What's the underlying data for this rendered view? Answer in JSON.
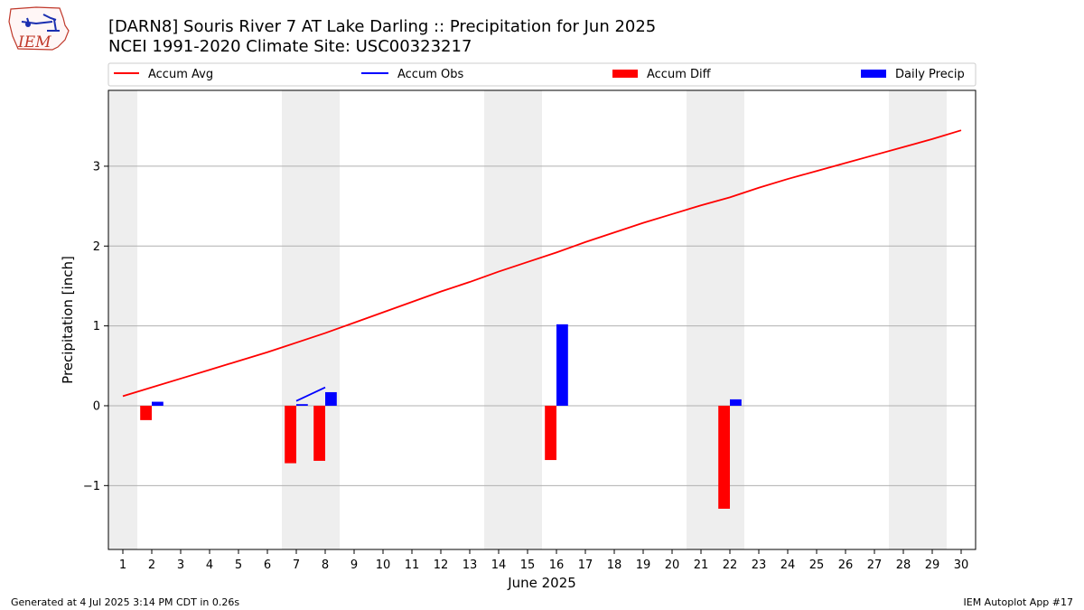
{
  "logo": {
    "text": "IEM"
  },
  "title": {
    "line1": "[DARN8] Souris River 7 AT Lake Darling :: Precipitation for Jun 2025",
    "line2": "NCEI 1991-2020 Climate Site: USC00323217"
  },
  "footer": {
    "left": "Generated at 4 Jul 2025 3:14 PM CDT in 0.26s",
    "right": "IEM Autoplot App #17"
  },
  "colors": {
    "accum_avg": "#ff0000",
    "accum_obs": "#0000ff",
    "accum_diff": "#ff0000",
    "daily_precip": "#0000ff",
    "weekend_band": "#eeeeee",
    "grid": "#b0b0b0"
  },
  "chart_data": {
    "type": "bar",
    "title": "[DARN8] Souris River 7 AT Lake Darling :: Precipitation for Jun 2025",
    "subtitle": "NCEI 1991-2020 Climate Site: USC00323217",
    "xlabel": "June 2025",
    "ylabel": "Precipitation [inch]",
    "xlim": [
      0.5,
      30.5
    ],
    "ylim": [
      -1.8,
      3.95
    ],
    "x_ticks": [
      1,
      2,
      3,
      4,
      5,
      6,
      7,
      8,
      9,
      10,
      11,
      12,
      13,
      14,
      15,
      16,
      17,
      18,
      19,
      20,
      21,
      22,
      23,
      24,
      25,
      26,
      27,
      28,
      29,
      30
    ],
    "y_ticks": [
      -1,
      0,
      1,
      2,
      3
    ],
    "y_tick_labels": [
      "−1",
      "0",
      "1",
      "2",
      "3"
    ],
    "grid": "horizontal",
    "legend_position": "top",
    "legend": [
      "Accum Avg",
      "Accum Obs",
      "Accum Diff",
      "Daily Precip"
    ],
    "weekend_bands": [
      [
        0.5,
        1.5
      ],
      [
        6.5,
        8.5
      ],
      [
        13.5,
        15.5
      ],
      [
        20.5,
        22.5
      ],
      [
        27.5,
        29.5
      ]
    ],
    "accum_avg": {
      "x": [
        1,
        2,
        3,
        4,
        5,
        6,
        7,
        8,
        9,
        10,
        11,
        12,
        13,
        14,
        15,
        16,
        17,
        18,
        19,
        20,
        21,
        22,
        23,
        24,
        25,
        26,
        27,
        28,
        29,
        30
      ],
      "y": [
        0.12,
        0.23,
        0.34,
        0.45,
        0.56,
        0.67,
        0.79,
        0.91,
        1.04,
        1.17,
        1.3,
        1.43,
        1.55,
        1.68,
        1.8,
        1.92,
        2.05,
        2.17,
        2.29,
        2.4,
        2.51,
        2.61,
        2.73,
        2.84,
        2.94,
        3.04,
        3.14,
        3.24,
        3.34,
        3.45
      ]
    },
    "accum_obs": {
      "x": [
        7,
        8
      ],
      "y": [
        0.06,
        0.23
      ]
    },
    "accum_diff": {
      "x": [
        2,
        7,
        8,
        16,
        22
      ],
      "y": [
        -0.18,
        -0.72,
        -0.69,
        -0.68,
        -1.29
      ]
    },
    "daily_precip": {
      "x": [
        2,
        7,
        8,
        16,
        22
      ],
      "y": [
        0.05,
        0.02,
        0.17,
        1.02,
        0.08
      ]
    }
  }
}
